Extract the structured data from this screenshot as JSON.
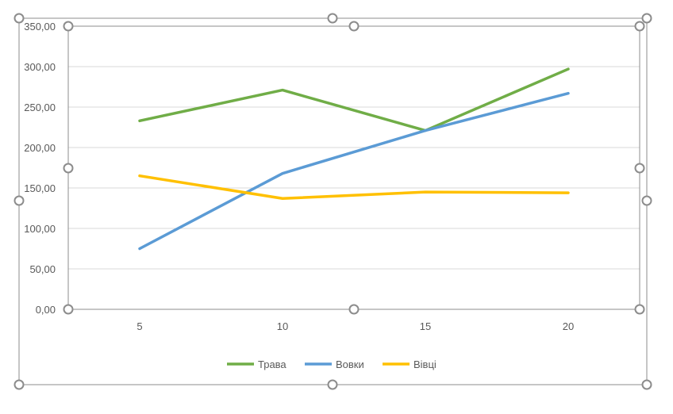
{
  "chart_data": {
    "type": "line",
    "x": [
      5,
      10,
      15,
      20
    ],
    "series": [
      {
        "name": "Трава",
        "values": [
          233,
          271,
          221,
          297
        ]
      },
      {
        "name": "Вовки",
        "values": [
          75,
          168,
          221,
          267
        ]
      },
      {
        "name": "Вівці",
        "values": [
          165,
          137,
          145,
          144
        ]
      }
    ],
    "x_tick_labels": [
      "5",
      "10",
      "15",
      "20"
    ],
    "y_tick_labels": [
      "0,00",
      "50,00",
      "100,00",
      "150,00",
      "200,00",
      "250,00",
      "300,00",
      "350,00"
    ],
    "ylim": [
      0,
      350
    ],
    "grid": true,
    "legend_position": "bottom",
    "colors": {
      "Трава": "#70ad47",
      "Вовки": "#5b9bd5",
      "Вівці": "#ffc000"
    }
  },
  "selection": {
    "state": "selected",
    "handle_icon": "resize-handle-icon"
  }
}
